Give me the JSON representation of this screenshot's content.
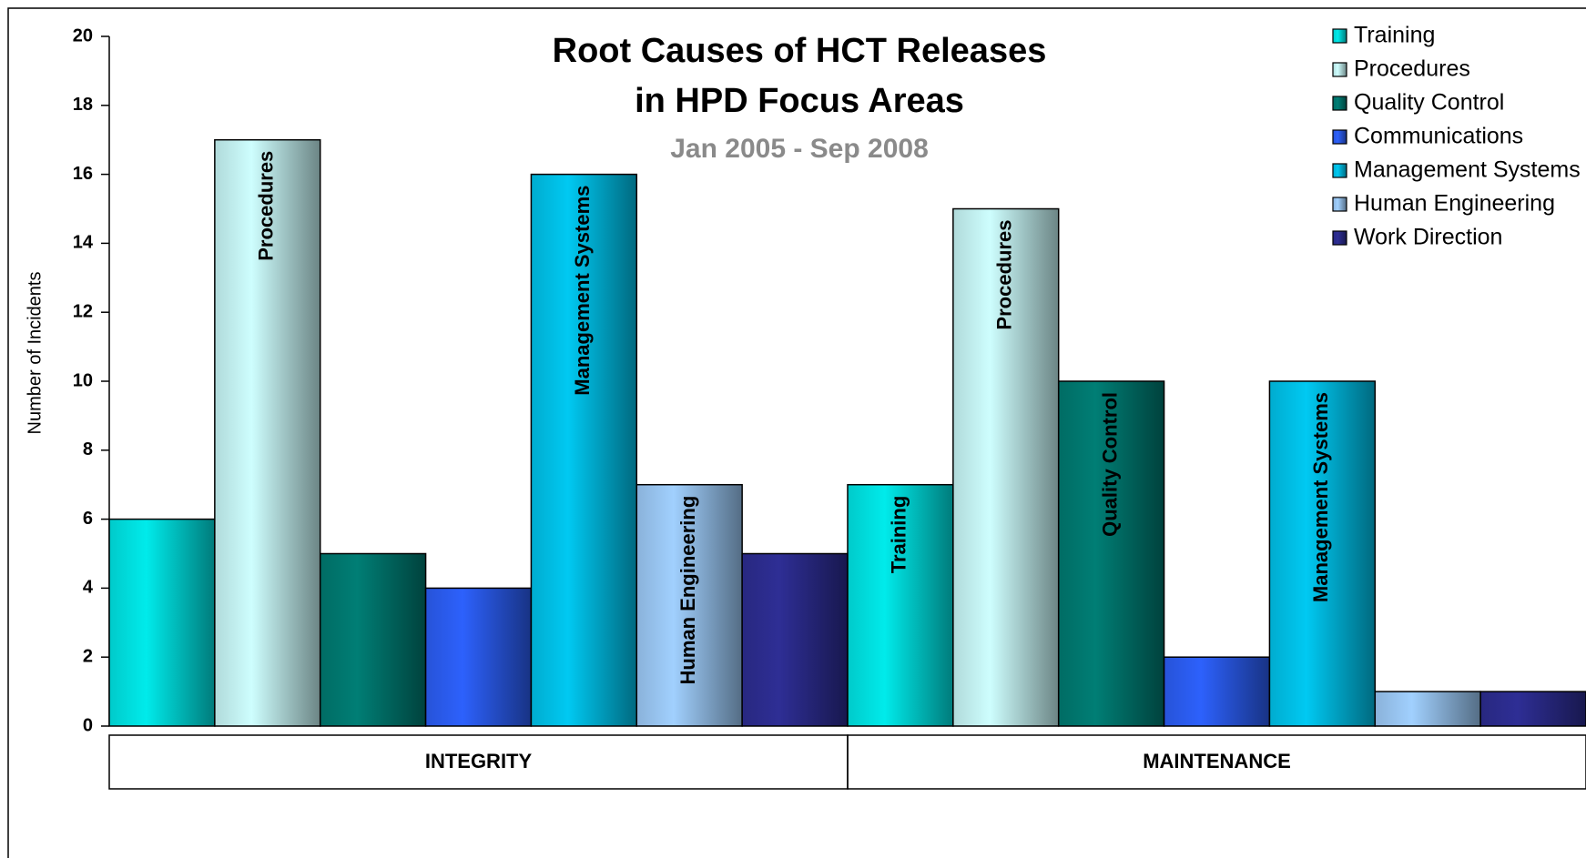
{
  "chart_data": {
    "type": "bar",
    "title": "Root Causes of HCT Releases",
    "title_line2": "in HPD Focus Areas",
    "subtitle": "Jan 2005 - Sep 2008",
    "y_label": "Number of Incidents",
    "categories": [
      "INTEGRITY",
      "MAINTENANCE"
    ],
    "series": [
      {
        "name": "Training",
        "color": "#00e0e0",
        "values": [
          6,
          7
        ],
        "inside_labels": [
          false,
          true
        ]
      },
      {
        "name": "Procedures",
        "color": "#c4f2f2",
        "values": [
          17,
          15
        ],
        "inside_labels": [
          true,
          true
        ]
      },
      {
        "name": "Quality Control",
        "color": "#00786f",
        "values": [
          5,
          10
        ],
        "inside_labels": [
          false,
          true
        ]
      },
      {
        "name": "Communications",
        "color": "#2b5cf0",
        "values": [
          4,
          2
        ],
        "inside_labels": [
          false,
          false
        ]
      },
      {
        "name": "Management Systems",
        "color": "#00bfe6",
        "values": [
          16,
          10
        ],
        "inside_labels": [
          true,
          true
        ]
      },
      {
        "name": "Human Engineering",
        "color": "#99c6f2",
        "values": [
          7,
          1
        ],
        "inside_labels": [
          true,
          false
        ]
      },
      {
        "name": "Work Direction",
        "color": "#2c2c8e",
        "values": [
          5,
          1
        ],
        "inside_labels": [
          false,
          false
        ]
      }
    ],
    "ylim": [
      0,
      20
    ],
    "yticks": [
      0,
      2,
      4,
      6,
      8,
      10,
      12,
      14,
      16,
      18,
      20
    ],
    "legend": "top-right",
    "grid": false
  }
}
